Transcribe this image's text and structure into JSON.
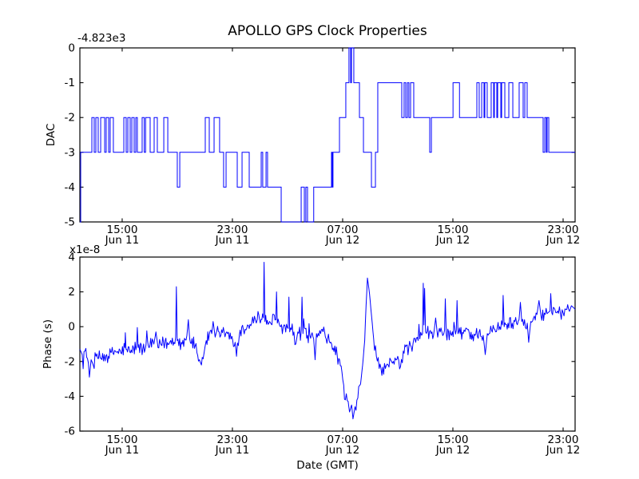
{
  "x_axis": {
    "label": "Date (GMT)",
    "range_hours_from_jun11_0000": [
      11.93,
      47.87
    ],
    "ticks": [
      {
        "time": "15:00",
        "date": "Jun 11",
        "hour": 15
      },
      {
        "time": "23:00",
        "date": "Jun 11",
        "hour": 23
      },
      {
        "time": "07:00",
        "date": "Jun 12",
        "hour": 31
      },
      {
        "time": "15:00",
        "date": "Jun 12",
        "hour": 39
      },
      {
        "time": "23:00",
        "date": "Jun 12",
        "hour": 47
      }
    ]
  },
  "style": {
    "line_color": "#0000ff",
    "axis_color": "#000000",
    "background": "#ffffff"
  },
  "chart_data": [
    {
      "type": "line",
      "subtype": "step",
      "title": "APOLLO GPS Clock Properties",
      "ylabel": "DAC",
      "y_offset_text": "-4.823e3",
      "ylim": [
        -5,
        0
      ],
      "y_ticks": [
        0,
        -1,
        -2,
        -3,
        -4,
        -5
      ],
      "legend": "none",
      "grid": false,
      "steps_hour_level": [
        [
          11.93,
          -5
        ],
        [
          11.99,
          -3
        ],
        [
          12.8,
          -2
        ],
        [
          12.97,
          -3
        ],
        [
          13.09,
          -2
        ],
        [
          13.26,
          -3
        ],
        [
          13.44,
          -2
        ],
        [
          13.73,
          -3
        ],
        [
          13.84,
          -2
        ],
        [
          14.02,
          -3
        ],
        [
          14.13,
          -2
        ],
        [
          14.36,
          -3
        ],
        [
          15.12,
          -2
        ],
        [
          15.29,
          -3
        ],
        [
          15.41,
          -2
        ],
        [
          15.58,
          -3
        ],
        [
          15.7,
          -2
        ],
        [
          15.87,
          -3
        ],
        [
          15.99,
          -2
        ],
        [
          16.1,
          -3
        ],
        [
          16.45,
          -2
        ],
        [
          16.6,
          -3
        ],
        [
          16.7,
          -2
        ],
        [
          17.03,
          -3
        ],
        [
          17.32,
          -2
        ],
        [
          17.55,
          -3
        ],
        [
          18.02,
          -2
        ],
        [
          18.31,
          -3
        ],
        [
          19.0,
          -4
        ],
        [
          19.18,
          -3
        ],
        [
          21.03,
          -2
        ],
        [
          21.32,
          -3
        ],
        [
          21.67,
          -2
        ],
        [
          22.07,
          -3
        ],
        [
          22.36,
          -4
        ],
        [
          22.54,
          -3
        ],
        [
          23.35,
          -4
        ],
        [
          23.7,
          -3
        ],
        [
          24.22,
          -4
        ],
        [
          25.09,
          -3
        ],
        [
          25.2,
          -4
        ],
        [
          25.44,
          -3
        ],
        [
          25.55,
          -4
        ],
        [
          26.54,
          -5
        ],
        [
          27.99,
          -4
        ],
        [
          28.22,
          -5
        ],
        [
          28.33,
          -4
        ],
        [
          28.45,
          -5
        ],
        [
          28.9,
          -4
        ],
        [
          30.19,
          -3
        ],
        [
          30.25,
          -4
        ],
        [
          30.3,
          -3
        ],
        [
          30.77,
          -2
        ],
        [
          31.23,
          -1
        ],
        [
          31.46,
          0
        ],
        [
          31.58,
          -1
        ],
        [
          31.64,
          0
        ],
        [
          31.81,
          -1
        ],
        [
          32.22,
          -2
        ],
        [
          32.51,
          -3
        ],
        [
          33.09,
          -4
        ],
        [
          33.38,
          -3
        ],
        [
          33.55,
          -1
        ],
        [
          35.29,
          -2
        ],
        [
          35.46,
          -1
        ],
        [
          35.58,
          -2
        ],
        [
          35.7,
          -1
        ],
        [
          35.81,
          -2
        ],
        [
          35.93,
          -1
        ],
        [
          36.16,
          -2
        ],
        [
          37.32,
          -3
        ],
        [
          37.44,
          -2
        ],
        [
          39.01,
          -1
        ],
        [
          39.48,
          -2
        ],
        [
          40.74,
          -1
        ],
        [
          40.91,
          -2
        ],
        [
          41.09,
          -1
        ],
        [
          41.26,
          -2
        ],
        [
          41.32,
          -1
        ],
        [
          41.49,
          -2
        ],
        [
          41.78,
          -1
        ],
        [
          41.96,
          -2
        ],
        [
          42.01,
          -1
        ],
        [
          42.19,
          -2
        ],
        [
          42.25,
          -1
        ],
        [
          42.48,
          -2
        ],
        [
          42.54,
          -1
        ],
        [
          42.77,
          -2
        ],
        [
          43.06,
          -1
        ],
        [
          43.35,
          -2
        ],
        [
          43.81,
          -1
        ],
        [
          44.1,
          -2
        ],
        [
          44.22,
          -1
        ],
        [
          44.39,
          -2
        ],
        [
          45.55,
          -3
        ],
        [
          45.67,
          -2
        ],
        [
          45.78,
          -3
        ],
        [
          45.84,
          -2
        ],
        [
          45.96,
          -3
        ],
        [
          47.87,
          -3
        ]
      ]
    },
    {
      "type": "line",
      "subtype": "noisy",
      "ylabel": "Phase (s)",
      "y_scale_text": "x1e-8",
      "xlabel": "Date (GMT)",
      "ylim": [
        -6,
        4
      ],
      "y_ticks": [
        4,
        2,
        0,
        -2,
        -4,
        -6
      ],
      "legend": "none",
      "grid": false,
      "noise_amplitude": 0.4,
      "points_hour_value": [
        [
          11.93,
          -1.3
        ],
        [
          12.1,
          -1.6
        ],
        [
          12.3,
          -1.4
        ],
        [
          12.55,
          -2.1
        ],
        [
          12.62,
          -2.9
        ],
        [
          12.75,
          -1.9
        ],
        [
          12.9,
          -2.2
        ],
        [
          13.1,
          -1.7
        ],
        [
          13.4,
          -1.8
        ],
        [
          13.7,
          -1.6
        ],
        [
          14.0,
          -1.7
        ],
        [
          14.5,
          -1.4
        ],
        [
          14.9,
          -1.5
        ],
        [
          15.2,
          -1.2
        ],
        [
          15.23,
          -0.35
        ],
        [
          15.28,
          -1.3
        ],
        [
          15.6,
          -1.5
        ],
        [
          16.05,
          -1.1
        ],
        [
          16.1,
          -0.05
        ],
        [
          16.16,
          -1.2
        ],
        [
          16.5,
          -1.3
        ],
        [
          16.9,
          -1.1
        ],
        [
          17.3,
          -1.0
        ],
        [
          17.45,
          -0.3
        ],
        [
          17.6,
          -1.2
        ],
        [
          18.0,
          -0.9
        ],
        [
          18.4,
          -1.0
        ],
        [
          18.88,
          -0.6
        ],
        [
          18.93,
          2.3
        ],
        [
          18.99,
          -0.8
        ],
        [
          19.35,
          -1.0
        ],
        [
          19.7,
          -0.5
        ],
        [
          19.8,
          0.4
        ],
        [
          19.9,
          -0.7
        ],
        [
          20.3,
          -1.1
        ],
        [
          20.6,
          -1.9
        ],
        [
          20.75,
          -2.2
        ],
        [
          21.0,
          -1.2
        ],
        [
          21.1,
          -0.8
        ],
        [
          21.5,
          -0.4
        ],
        [
          21.6,
          0.3
        ],
        [
          21.75,
          -0.6
        ],
        [
          22.1,
          -0.6
        ],
        [
          22.4,
          -0.3
        ],
        [
          22.65,
          -0.4
        ],
        [
          22.9,
          -0.7
        ],
        [
          23.2,
          -0.9
        ],
        [
          23.3,
          -1.7
        ],
        [
          23.5,
          -0.5
        ],
        [
          23.8,
          -0.2
        ],
        [
          24.1,
          0.1
        ],
        [
          24.4,
          0.2
        ],
        [
          24.6,
          0.6
        ],
        [
          24.8,
          0.4
        ],
        [
          25.25,
          0.5
        ],
        [
          25.3,
          3.7
        ],
        [
          25.36,
          0.3
        ],
        [
          25.7,
          0.3
        ],
        [
          26.15,
          0.4
        ],
        [
          26.2,
          2.0
        ],
        [
          26.26,
          0.2
        ],
        [
          26.5,
          0.0
        ],
        [
          27.05,
          -0.1
        ],
        [
          27.1,
          1.7
        ],
        [
          27.16,
          -0.3
        ],
        [
          27.4,
          -0.5
        ],
        [
          27.6,
          -1.0
        ],
        [
          27.75,
          -0.3
        ],
        [
          28.0,
          -0.2
        ],
        [
          28.05,
          1.7
        ],
        [
          28.12,
          -0.4
        ],
        [
          28.45,
          -0.5
        ],
        [
          28.9,
          -0.7
        ],
        [
          29.0,
          -1.9
        ],
        [
          29.1,
          -0.4
        ],
        [
          29.4,
          -0.4
        ],
        [
          29.8,
          -0.7
        ],
        [
          30.2,
          -1.0
        ],
        [
          30.6,
          -1.6
        ],
        [
          30.95,
          -2.6
        ],
        [
          31.2,
          -4.2
        ],
        [
          31.4,
          -4.3
        ],
        [
          31.5,
          -4.9
        ],
        [
          31.65,
          -4.5
        ],
        [
          31.75,
          -5.3
        ],
        [
          31.9,
          -4.6
        ],
        [
          32.1,
          -4.1
        ],
        [
          32.3,
          -3.3
        ],
        [
          32.45,
          -2.2
        ],
        [
          32.6,
          -0.8
        ],
        [
          32.7,
          1.2
        ],
        [
          32.8,
          2.8
        ],
        [
          32.95,
          1.9
        ],
        [
          33.1,
          0.6
        ],
        [
          33.25,
          -0.7
        ],
        [
          33.45,
          -1.7
        ],
        [
          33.65,
          -2.4
        ],
        [
          33.85,
          -2.8
        ],
        [
          34.1,
          -2.4
        ],
        [
          34.3,
          -2.2
        ],
        [
          34.55,
          -2.0
        ],
        [
          34.8,
          -1.8
        ],
        [
          35.0,
          -1.7
        ],
        [
          35.2,
          -2.3
        ],
        [
          35.4,
          -1.4
        ],
        [
          35.8,
          -1.2
        ],
        [
          36.1,
          -1.0
        ],
        [
          36.3,
          -0.9
        ],
        [
          36.6,
          -0.7
        ],
        [
          36.8,
          -0.4
        ],
        [
          36.85,
          2.5
        ],
        [
          36.9,
          0.1
        ],
        [
          36.95,
          2.2
        ],
        [
          37.02,
          -0.3
        ],
        [
          37.3,
          -0.3
        ],
        [
          37.6,
          -0.5
        ],
        [
          37.75,
          0.5
        ],
        [
          37.9,
          -0.6
        ],
        [
          38.2,
          -0.3
        ],
        [
          38.4,
          -0.2
        ],
        [
          38.45,
          1.6
        ],
        [
          38.52,
          -0.4
        ],
        [
          38.9,
          -0.5
        ],
        [
          39.25,
          -0.2
        ],
        [
          39.3,
          1.5
        ],
        [
          39.37,
          -0.4
        ],
        [
          39.75,
          -0.4
        ],
        [
          40.0,
          -0.1
        ],
        [
          40.2,
          -0.4
        ],
        [
          40.6,
          -0.5
        ],
        [
          40.9,
          -0.3
        ],
        [
          41.2,
          -0.5
        ],
        [
          41.35,
          -1.6
        ],
        [
          41.5,
          -0.4
        ],
        [
          41.8,
          -0.2
        ],
        [
          42.1,
          -0.3
        ],
        [
          42.4,
          0.0
        ],
        [
          42.6,
          0.1
        ],
        [
          42.65,
          1.8
        ],
        [
          42.72,
          0.0
        ],
        [
          43.0,
          0.2
        ],
        [
          43.3,
          0.2
        ],
        [
          43.5,
          0.3
        ],
        [
          43.8,
          0.4
        ],
        [
          43.9,
          1.4
        ],
        [
          44.0,
          0.3
        ],
        [
          44.2,
          0.4
        ],
        [
          44.4,
          0.2
        ],
        [
          44.5,
          -0.9
        ],
        [
          44.65,
          0.3
        ],
        [
          44.85,
          0.5
        ],
        [
          45.1,
          0.7
        ],
        [
          45.25,
          1.5
        ],
        [
          45.4,
          0.6
        ],
        [
          45.7,
          0.7
        ],
        [
          45.9,
          0.8
        ],
        [
          46.05,
          0.9
        ],
        [
          46.1,
          1.9
        ],
        [
          46.18,
          0.8
        ],
        [
          46.4,
          1.0
        ],
        [
          46.6,
          0.9
        ],
        [
          46.8,
          0.8
        ],
        [
          47.0,
          0.8
        ],
        [
          47.2,
          1.0
        ],
        [
          47.4,
          1.0
        ],
        [
          47.6,
          1.2
        ],
        [
          47.75,
          1.1
        ],
        [
          47.87,
          1.0
        ]
      ]
    }
  ]
}
